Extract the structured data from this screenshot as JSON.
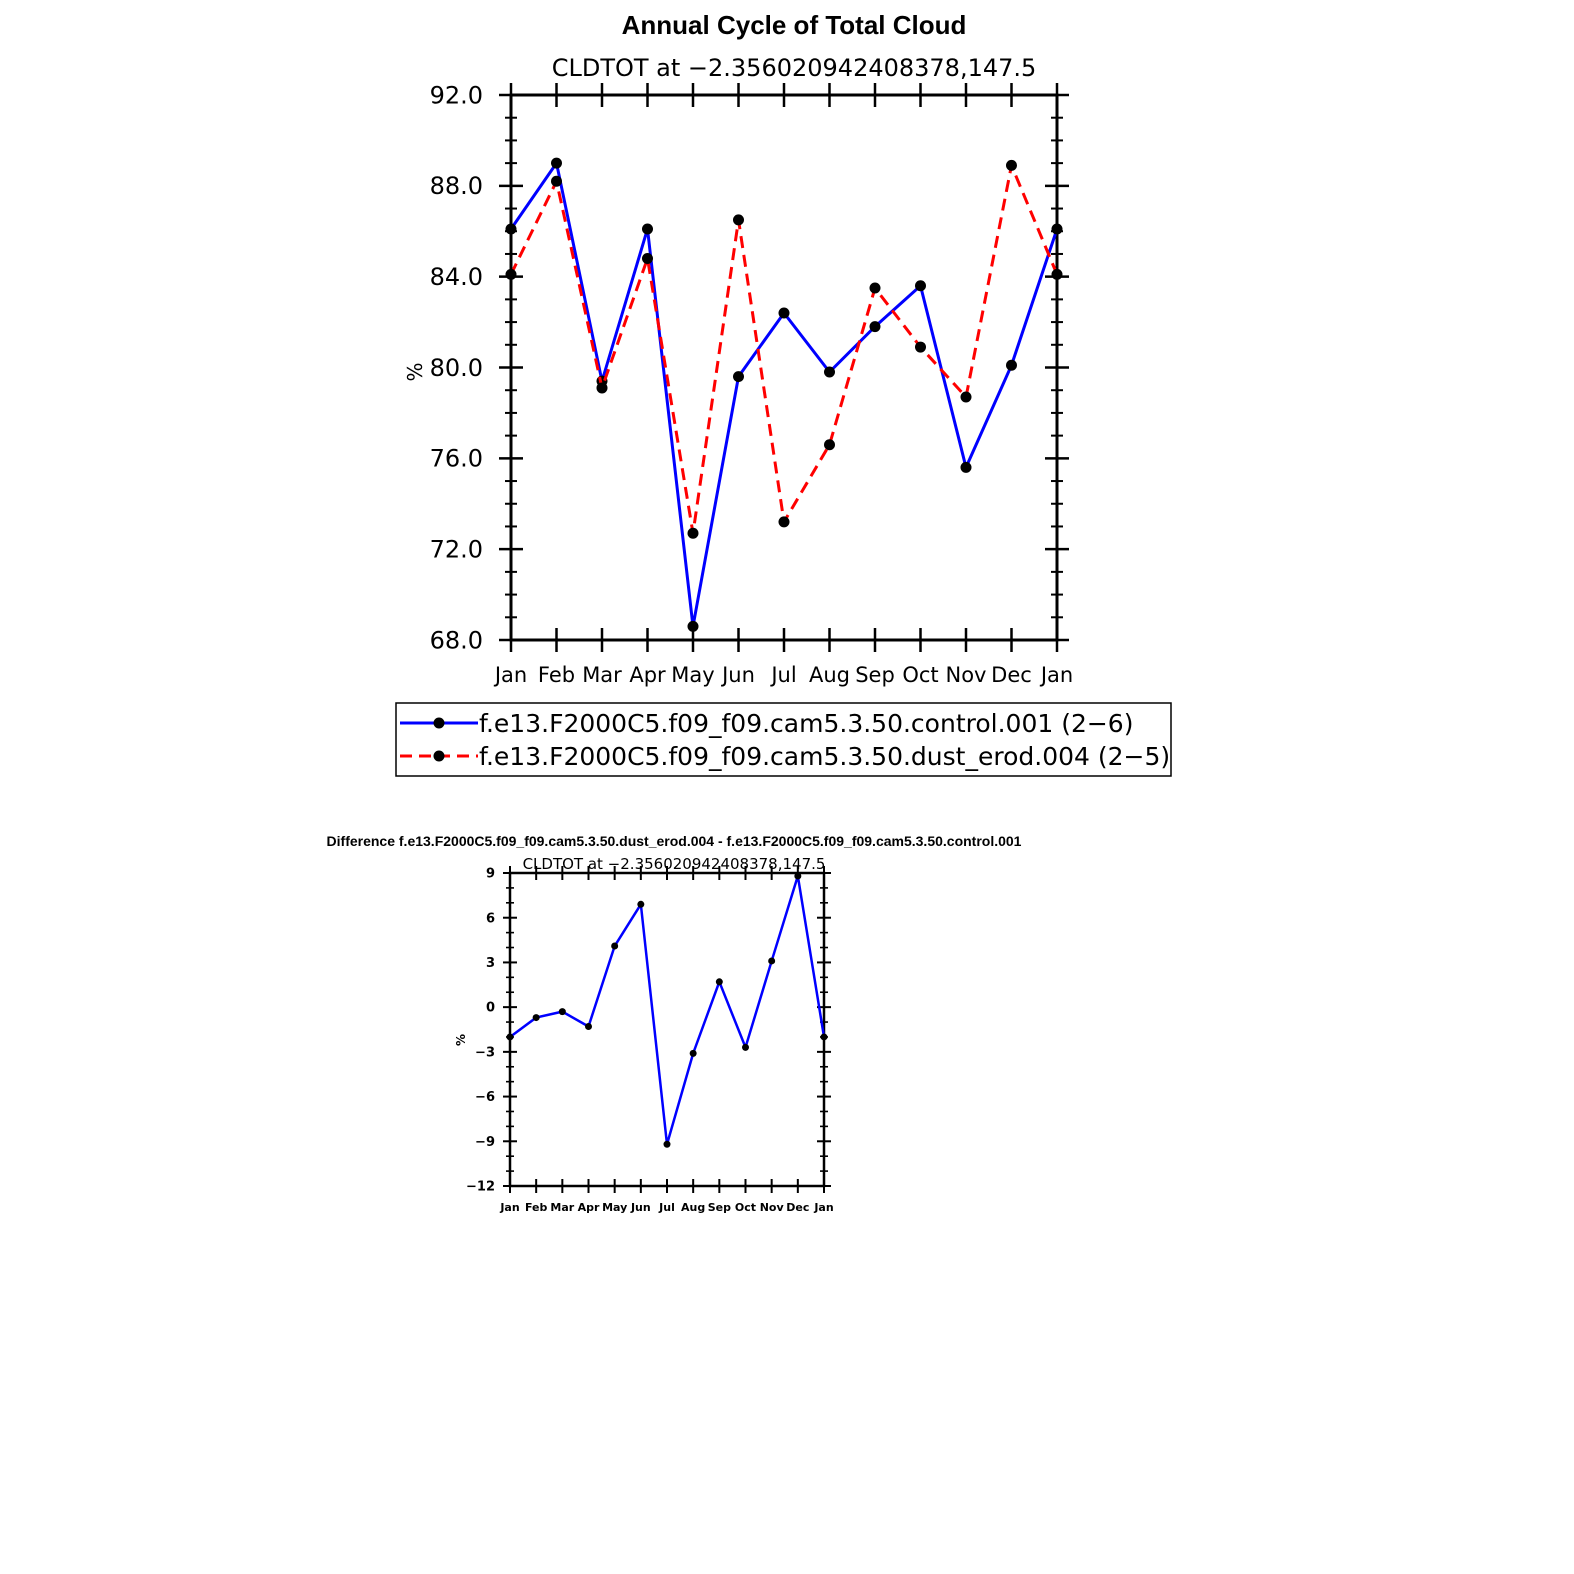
{
  "chart_data": [
    {
      "type": "line",
      "title": "Annual Cycle of Total Cloud",
      "subtitle": "CLDTOT at −2.356020942408378,147.5",
      "ylabel": "%",
      "xlabel": "",
      "categories": [
        "Jan",
        "Feb",
        "Mar",
        "Apr",
        "May",
        "Jun",
        "Jul",
        "Aug",
        "Sep",
        "Oct",
        "Nov",
        "Dec",
        "Jan"
      ],
      "ylim": [
        68.0,
        92.0
      ],
      "yticks": [
        "68.0",
        "72.0",
        "76.0",
        "80.0",
        "84.0",
        "88.0",
        "92.0"
      ],
      "series": [
        {
          "name": "f.e13.F2000C5.f09_f09.cam5.3.50.control.001 (2−6)",
          "color": "#0000ff",
          "dash": "solid",
          "values": [
            86.1,
            89.0,
            79.4,
            86.1,
            68.6,
            79.6,
            82.4,
            79.8,
            81.8,
            83.6,
            75.6,
            80.1,
            86.1
          ]
        },
        {
          "name": "f.e13.F2000C5.f09_f09.cam5.3.50.dust_erod.004 (2−5)",
          "color": "#ff0000",
          "dash": "dashed",
          "values": [
            84.1,
            88.2,
            79.1,
            84.8,
            72.7,
            86.5,
            73.2,
            76.6,
            83.5,
            80.9,
            78.7,
            88.9,
            84.1
          ]
        }
      ]
    },
    {
      "type": "line",
      "title": "Difference f.e13.F2000C5.f09_f09.cam5.3.50.dust_erod.004 - f.e13.F2000C5.f09_f09.cam5.3.50.control.001",
      "subtitle": "CLDTOT at −2.356020942408378,147.5",
      "ylabel": "%",
      "xlabel": "",
      "categories": [
        "Jan",
        "Feb",
        "Mar",
        "Apr",
        "May",
        "Jun",
        "Jul",
        "Aug",
        "Sep",
        "Oct",
        "Nov",
        "Dec",
        "Jan"
      ],
      "ylim": [
        -12,
        9
      ],
      "yticks": [
        "−12",
        "−9",
        "−6",
        "−3",
        "0",
        "3",
        "6",
        "9"
      ],
      "series": [
        {
          "name": "difference",
          "color": "#0000ff",
          "dash": "solid",
          "values": [
            -2.0,
            -0.7,
            -0.3,
            -1.3,
            4.1,
            6.9,
            -9.2,
            -3.1,
            1.7,
            -2.7,
            3.1,
            8.8,
            -2.0
          ]
        }
      ]
    }
  ]
}
